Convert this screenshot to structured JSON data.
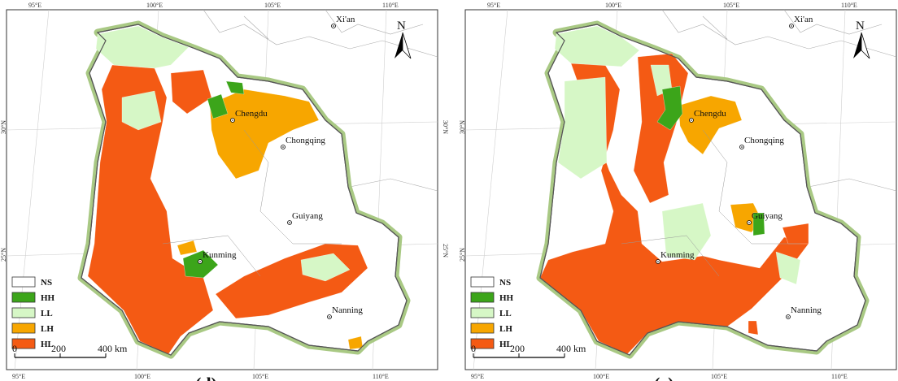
{
  "legend": [
    {
      "label": "NS",
      "color": "#ffffff"
    },
    {
      "label": "HH",
      "color": "#3ca51a"
    },
    {
      "label": "LL",
      "color": "#d6f7c6"
    },
    {
      "label": "LH",
      "color": "#f7a600"
    },
    {
      "label": "HL",
      "color": "#f45a14"
    }
  ],
  "lon_labels": [
    "95°E",
    "100°E",
    "105°E",
    "110°E"
  ],
  "lat_labels": [
    "30°N",
    "25°N"
  ],
  "scale_labels": [
    "0",
    "200",
    "400 km"
  ],
  "north": "N",
  "panels": [
    {
      "label": "(d)",
      "cities": [
        "Xi'an",
        "Chengdu",
        "Chongqing",
        "Guiyang",
        "Kunming",
        "Nanning"
      ]
    },
    {
      "label": "(e)",
      "cities": [
        "Xi'an",
        "Chengdu",
        "Chongqing",
        "Guiyang",
        "Kunming",
        "Nanning"
      ]
    }
  ]
}
